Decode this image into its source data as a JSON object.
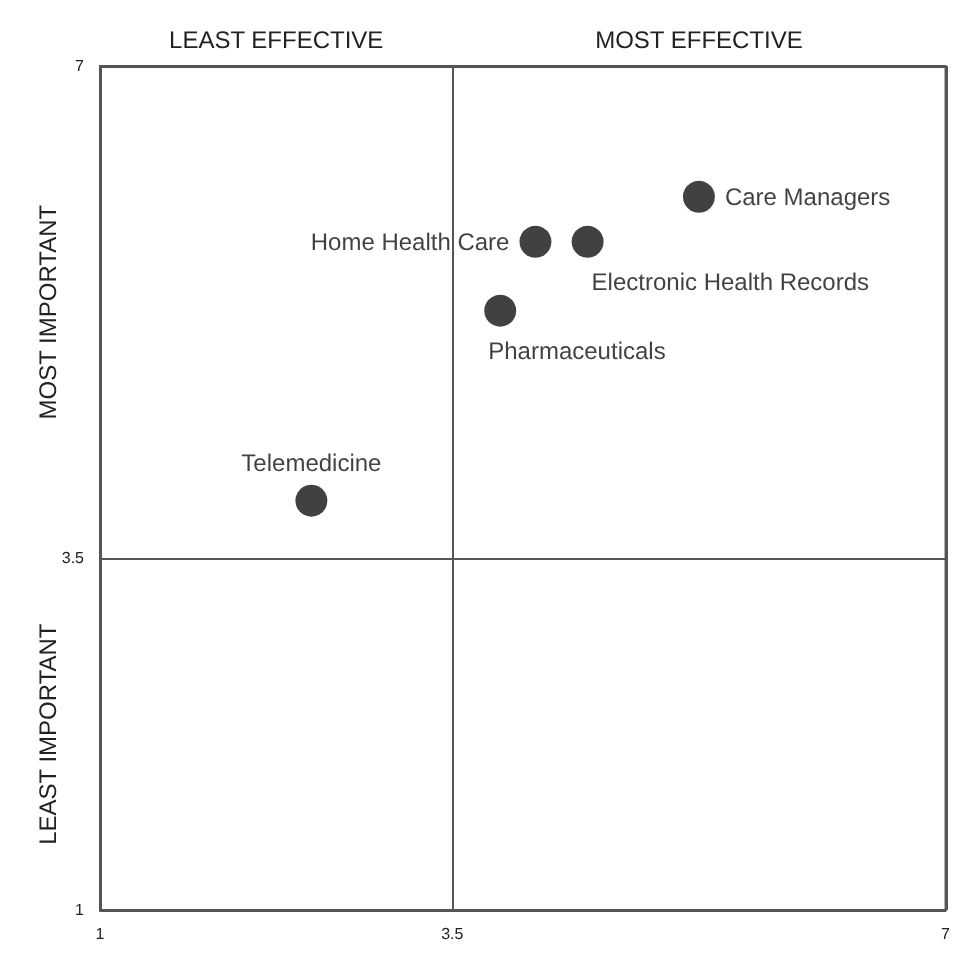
{
  "chart_data": {
    "type": "scatter",
    "xlim": [
      1,
      7
    ],
    "ylim": [
      1,
      7
    ],
    "xticks": [
      1,
      3.5,
      7
    ],
    "yticks": [
      1,
      3.5,
      7
    ],
    "series": [
      {
        "name": "Care Managers",
        "color": "#111111",
        "x": [
          5.25
        ],
        "values": [
          6.07
        ]
      },
      {
        "name": "Home Health Care",
        "color": "#111111",
        "x": [
          4.09
        ],
        "values": [
          5.75
        ]
      },
      {
        "name": "Electronic Health Records",
        "color": "#111111",
        "x": [
          4.46
        ],
        "values": [
          5.75
        ]
      },
      {
        "name": "Pharmaceuticals",
        "color": "#111111",
        "x": [
          3.84
        ],
        "values": [
          5.26
        ]
      },
      {
        "name": "Telemedicine",
        "color": "#111111",
        "x": [
          2.5
        ],
        "values": [
          3.91
        ]
      }
    ],
    "annotations": [
      "LEAST EFFECTIVE",
      "MOST EFFECTIVE",
      "MOST IMPORTANT",
      "LEAST IMPORTANT"
    ],
    "marker": "circle",
    "grid": true,
    "legend": false
  }
}
